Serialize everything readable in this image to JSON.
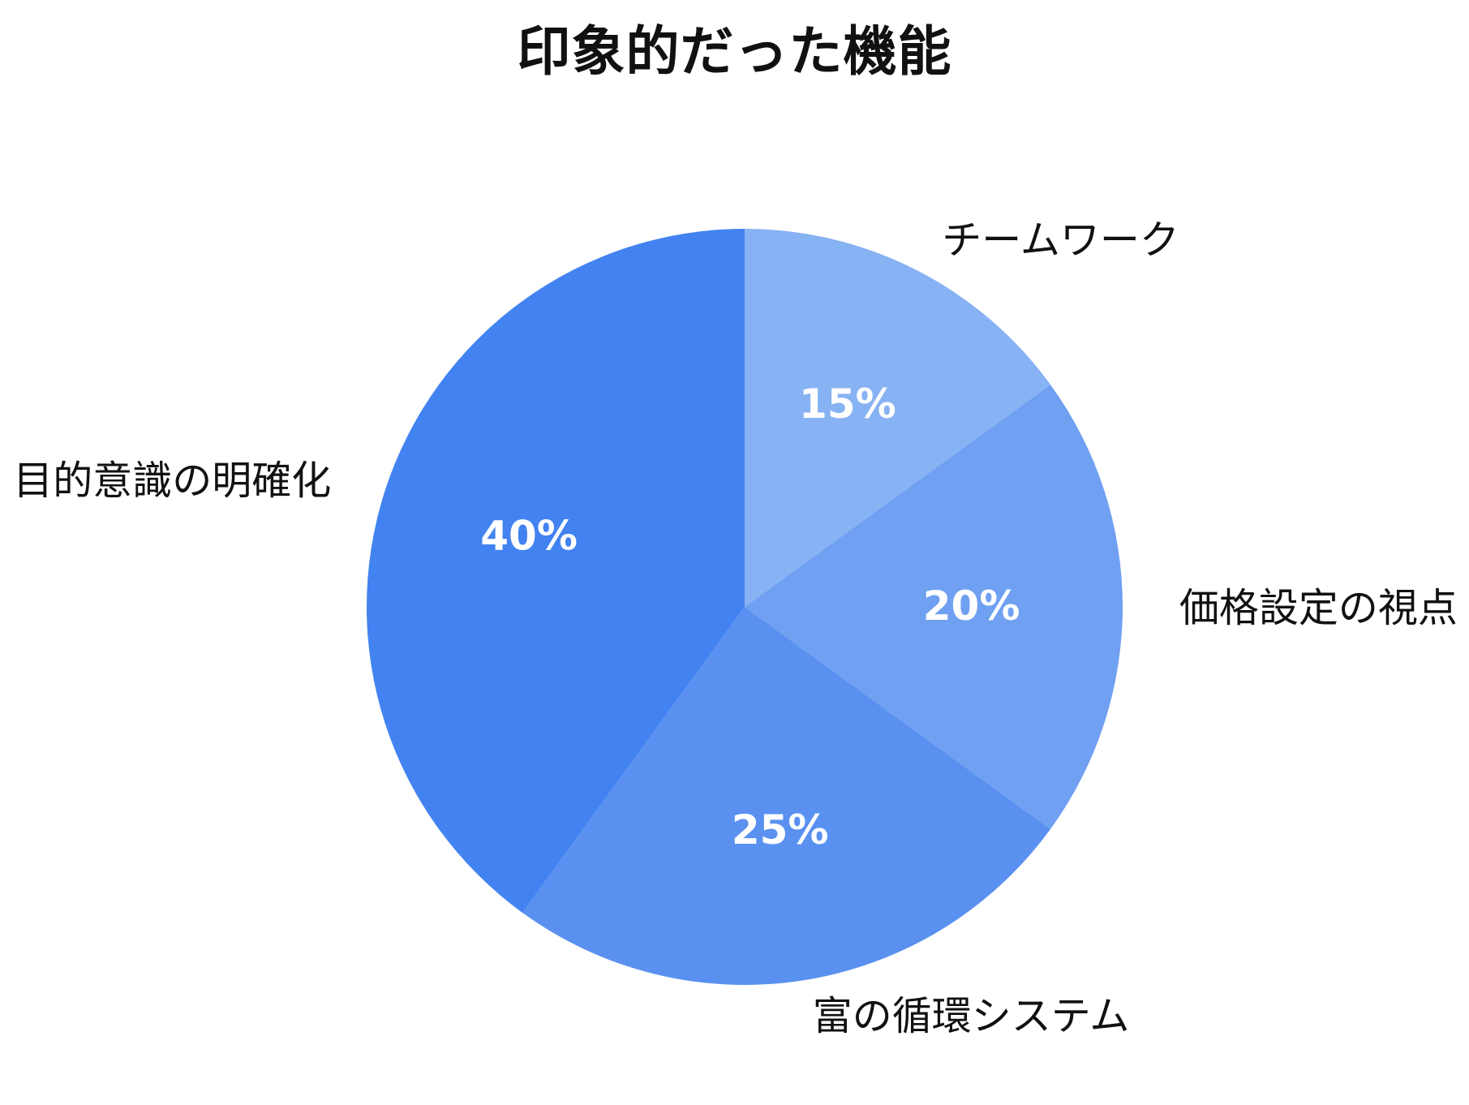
{
  "chart_data": {
    "type": "pie",
    "title": "印象的だった機能",
    "slices": [
      {
        "label": "チームワーク",
        "value": 15,
        "percent_label": "15%",
        "color": "#87B2F3"
      },
      {
        "label": "価格設定の視点",
        "value": 20,
        "percent_label": "20%",
        "color": "#6FA0F2"
      },
      {
        "label": "富の循環システム",
        "value": 25,
        "percent_label": "25%",
        "color": "#5A91F0"
      },
      {
        "label": "目的意識の明確化",
        "value": 40,
        "percent_label": "40%",
        "color": "#4283F1"
      }
    ],
    "start_angle_deg": 0,
    "direction": "clockwise",
    "legend": "none",
    "grid": "off",
    "background": "#FFFFFF",
    "value_label_color": "#FFFFFF",
    "category_label_color": "#111111"
  }
}
